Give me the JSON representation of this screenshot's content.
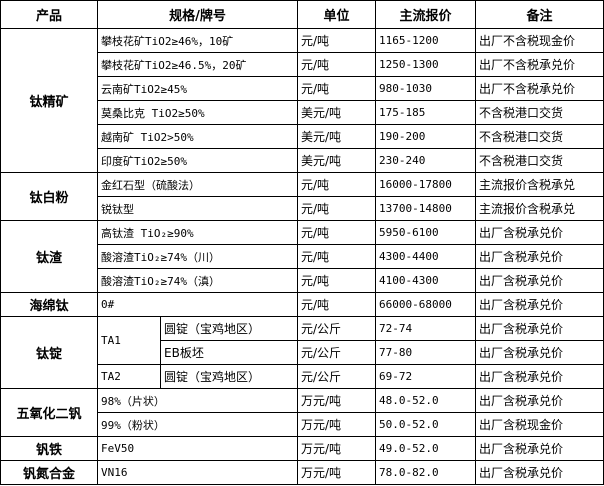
{
  "header": [
    "产品",
    "规格/牌号",
    "单位",
    "主流报价",
    "备注"
  ],
  "groups": [
    {
      "product": "钛精矿",
      "rows": [
        {
          "spec": "攀枝花矿TiO2≥46%，10矿",
          "unit": "元/吨",
          "price": "1165-1200",
          "note": "出厂不含税现金价"
        },
        {
          "spec": "攀枝花矿TiO2≥46.5%，20矿",
          "unit": "元/吨",
          "price": "1250-1300",
          "note": "出厂不含税承兑价"
        },
        {
          "spec": "云南矿TiO2≥45%",
          "unit": "元/吨",
          "price": "980-1030",
          "note": "出厂不含税承兑价"
        },
        {
          "spec": "莫桑比克 TiO2≥50%",
          "unit": "美元/吨",
          "price": "175-185",
          "note": "不含税港口交货"
        },
        {
          "spec": "越南矿 TiO2>50%",
          "unit": "美元/吨",
          "price": "190-200",
          "note": "不含税港口交货"
        },
        {
          "spec": "印度矿TiO2≥50%",
          "unit": "美元/吨",
          "price": "230-240",
          "note": "不含税港口交货"
        }
      ]
    },
    {
      "product": "钛白粉",
      "rows": [
        {
          "spec": "金红石型（硫酸法）",
          "unit": "元/吨",
          "price": "16000-17800",
          "note": "主流报价含税承兑"
        },
        {
          "spec": "锐钛型",
          "unit": "元/吨",
          "price": "13700-14800",
          "note": "主流报价含税承兑"
        }
      ]
    },
    {
      "product": "钛渣",
      "rows": [
        {
          "spec": "高钛渣 TiO₂≥90%",
          "unit": "元/吨",
          "price": "5950-6100",
          "note": "出厂含税承兑价"
        },
        {
          "spec": "酸溶渣TiO₂≥74%（川）",
          "unit": "元/吨",
          "price": "4300-4400",
          "note": "出厂含税承兑价"
        },
        {
          "spec": "酸溶渣TiO₂≥74%（滇）",
          "unit": "元/吨",
          "price": "4100-4300",
          "note": "出厂含税承兑价"
        }
      ]
    },
    {
      "product": "海绵钛",
      "rows": [
        {
          "spec": "0#",
          "unit": "元/吨",
          "price": "66000-68000",
          "note": "出厂含税承兑价"
        }
      ]
    },
    {
      "product": "钛锭",
      "rows": [
        {
          "grade": "TA1",
          "spec": "圆锭（宝鸡地区）",
          "unit": "元/公斤",
          "price": "72-74",
          "note": "出厂含税承兑价"
        },
        {
          "spec": "EB板坯",
          "unit": "元/公斤",
          "price": "77-80",
          "note": "出厂含税承兑价"
        },
        {
          "grade": "TA2",
          "spec": "圆锭（宝鸡地区）",
          "unit": "元/公斤",
          "price": "69-72",
          "note": "出厂含税承兑价"
        }
      ]
    },
    {
      "product": "五氧化二钒",
      "rows": [
        {
          "spec": "98%（片状）",
          "unit": "万元/吨",
          "price": "48.0-52.0",
          "note": "出厂含税承兑价"
        },
        {
          "spec": "99%（粉状）",
          "unit": "万元/吨",
          "price": "50.0-52.0",
          "note": "出厂含税现金价"
        }
      ]
    },
    {
      "product": "钒铁",
      "rows": [
        {
          "spec": "FeV50",
          "unit": "万元/吨",
          "price": "49.0-52.0",
          "note": "出厂含税承兑价"
        }
      ]
    },
    {
      "product": "钒氮合金",
      "rows": [
        {
          "spec": "VN16",
          "unit": "万元/吨",
          "price": "78.0-82.0",
          "note": "出厂含税承兑价"
        }
      ]
    }
  ]
}
